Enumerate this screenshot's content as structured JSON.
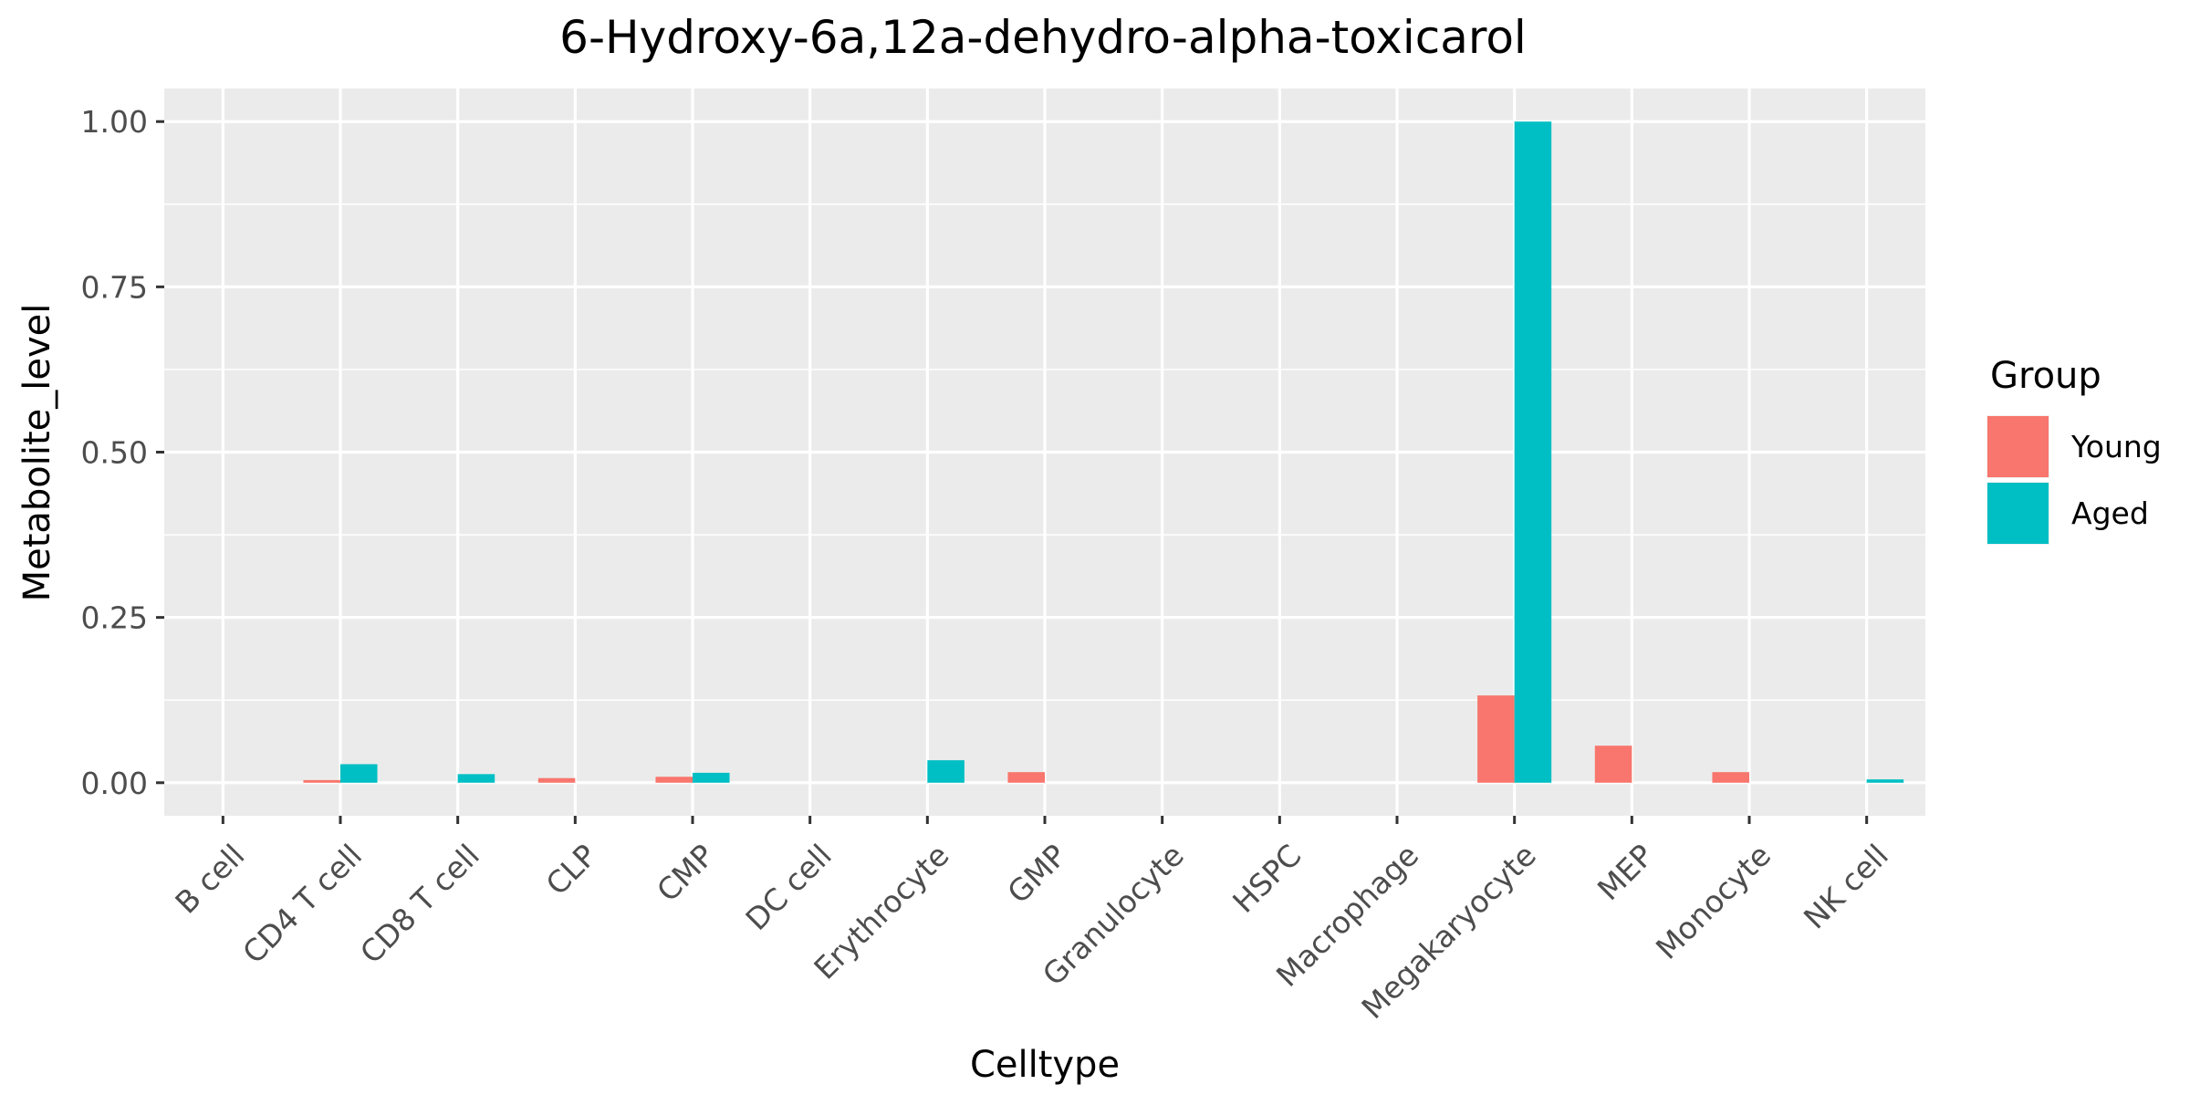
{
  "chart_data": {
    "type": "bar",
    "title": "6-Hydroxy-6a,12a-dehydro-alpha-toxicarol",
    "xlabel": "Celltype",
    "ylabel": "Metabolite_level",
    "categories": [
      "B cell",
      "CD4 T cell",
      "CD8 T cell",
      "CLP",
      "CMP",
      "DC cell",
      "Erythrocyte",
      "GMP",
      "Granulocyte",
      "HSPC",
      "Macrophage",
      "Megakaryocyte",
      "MEP",
      "Monocyte",
      "NK cell"
    ],
    "series": [
      {
        "name": "Young",
        "color": "#F8766D",
        "values": [
          0,
          0.004,
          0,
          0.007,
          0.009,
          0,
          0,
          0.016,
          0,
          0,
          0,
          0.132,
          0.056,
          0.016,
          0
        ]
      },
      {
        "name": "Aged",
        "color": "#00BFC4",
        "values": [
          0,
          0.028,
          0.013,
          0,
          0.015,
          0,
          0.034,
          0,
          0,
          0,
          0,
          1.0,
          0,
          0,
          0.005
        ]
      }
    ],
    "ylim": [
      -0.05,
      1.05
    ],
    "yticks": [
      0,
      0.25,
      0.5,
      0.75,
      1.0
    ],
    "ytick_labels": [
      "0.00",
      "0.25",
      "0.50",
      "0.75",
      "1.00"
    ],
    "legend": {
      "title": "Group",
      "position": "right"
    },
    "grid": true,
    "panel_background": "#EBEBEB"
  }
}
